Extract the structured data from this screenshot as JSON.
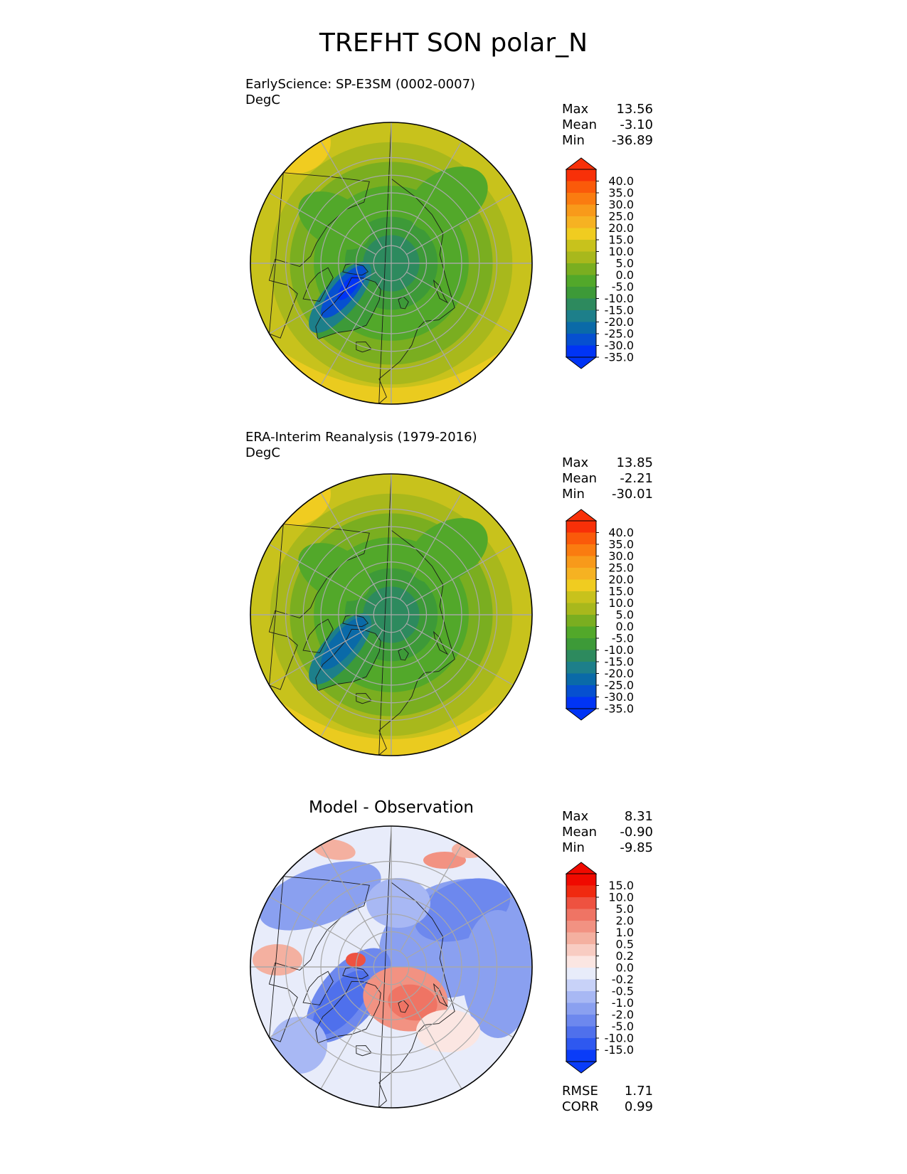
{
  "title": "TREFHT SON polar_N",
  "panels": [
    {
      "id": "test",
      "title": "EarlyScience: SP-E3SM (0002-0007)",
      "units": "DegC",
      "stats": [
        {
          "label": "Max",
          "value": "13.56"
        },
        {
          "label": "Mean",
          "value": "-3.10"
        },
        {
          "label": "Min",
          "value": "-36.89"
        }
      ]
    },
    {
      "id": "reference",
      "title": "ERA-Interim Reanalysis (1979-2016)",
      "units": "DegC",
      "stats": [
        {
          "label": "Max",
          "value": "13.85"
        },
        {
          "label": "Mean",
          "value": "-2.21"
        },
        {
          "label": "Min",
          "value": "-30.01"
        }
      ]
    },
    {
      "id": "diff",
      "title": "Model - Observation",
      "units": "",
      "stats": [
        {
          "label": "Max",
          "value": "8.31"
        },
        {
          "label": "Mean",
          "value": "-0.90"
        },
        {
          "label": "Min",
          "value": "-9.85"
        }
      ],
      "extra_stats": [
        {
          "label": "RMSE",
          "value": "1.71"
        },
        {
          "label": "CORR",
          "value": "0.99"
        }
      ]
    }
  ],
  "chart_data": [
    {
      "type": "heatmap",
      "panel": "test",
      "projection": "north polar stereographic",
      "colormap_levels": [
        -35,
        -30,
        -25,
        -20,
        -15,
        -10,
        -5,
        0,
        5,
        10,
        15,
        20,
        25,
        30,
        35,
        40
      ],
      "colorbar_ticks": [
        "40.0",
        "35.0",
        "30.0",
        "25.0",
        "20.0",
        "15.0",
        "10.0",
        "5.0",
        "0.0",
        "-5.0",
        "-10.0",
        "-15.0",
        "-20.0",
        "-25.0",
        "-30.0",
        "-35.0"
      ],
      "colors": [
        "#0034f5",
        "#0650d0",
        "#0a6aa8",
        "#1d7f8a",
        "#2d8a5e",
        "#3d9a38",
        "#52a82a",
        "#7aae20",
        "#a8b81c",
        "#c8c21c",
        "#f0cc20",
        "#f6b222",
        "#f89a1a",
        "#fa7c10",
        "#fa5a0a",
        "#f83008"
      ],
      "extend": "both"
    },
    {
      "type": "heatmap",
      "panel": "reference",
      "projection": "north polar stereographic",
      "colormap_levels": [
        -35,
        -30,
        -25,
        -20,
        -15,
        -10,
        -5,
        0,
        5,
        10,
        15,
        20,
        25,
        30,
        35,
        40
      ],
      "colorbar_ticks": [
        "40.0",
        "35.0",
        "30.0",
        "25.0",
        "20.0",
        "15.0",
        "10.0",
        "5.0",
        "0.0",
        "-5.0",
        "-10.0",
        "-15.0",
        "-20.0",
        "-25.0",
        "-30.0",
        "-35.0"
      ],
      "colors": [
        "#0034f5",
        "#0650d0",
        "#0a6aa8",
        "#1d7f8a",
        "#2d8a5e",
        "#3d9a38",
        "#52a82a",
        "#7aae20",
        "#a8b81c",
        "#c8c21c",
        "#f0cc20",
        "#f6b222",
        "#f89a1a",
        "#fa7c10",
        "#fa5a0a",
        "#f83008"
      ],
      "extend": "both"
    },
    {
      "type": "heatmap",
      "panel": "diff",
      "projection": "north polar stereographic",
      "colormap_levels": [
        -15,
        -10,
        -5,
        -2,
        -1,
        -0.5,
        -0.2,
        0,
        0.2,
        0.5,
        1,
        2,
        5,
        10,
        15
      ],
      "colorbar_ticks": [
        "15.0",
        "10.0",
        "5.0",
        "2.0",
        "1.0",
        "0.5",
        "0.2",
        "0.0",
        "-0.2",
        "-0.5",
        "-1.0",
        "-2.0",
        "-5.0",
        "-10.0",
        "-15.0"
      ],
      "colors": [
        "#0a3cf8",
        "#2e58f0",
        "#4f70ec",
        "#6d88ee",
        "#8aa0f0",
        "#a8b8f4",
        "#c8d2f8",
        "#e8ecfa",
        "#fbe6e2",
        "#f8ccc2",
        "#f4b0a0",
        "#f29282",
        "#ef7464",
        "#ee5240",
        "#f02a10",
        "#f00a00"
      ],
      "extend": "both"
    }
  ]
}
